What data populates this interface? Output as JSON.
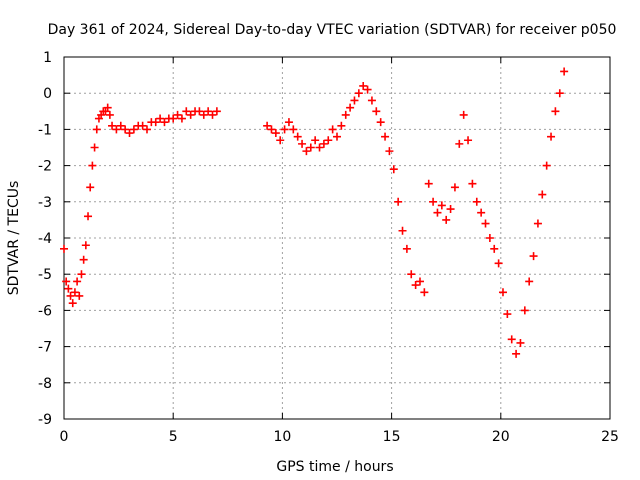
{
  "chart_data": {
    "type": "scatter",
    "title": "Day 361 of 2024, Sidereal Day-to-day VTEC variation (SDTVAR) for receiver p050",
    "xlabel": "GPS time / hours",
    "ylabel": "SDTVAR / TECUs",
    "xlim": [
      0,
      25
    ],
    "ylim": [
      -9,
      1
    ],
    "xticks": [
      0,
      5,
      10,
      15,
      20,
      25
    ],
    "yticks": [
      -9,
      -8,
      -7,
      -6,
      -5,
      -4,
      -3,
      -2,
      -1,
      0,
      1
    ],
    "grid": true,
    "marker": "plus",
    "series": [
      {
        "name": "SDTVAR",
        "color": "#ff0000",
        "x": [
          0.0,
          0.1,
          0.2,
          0.3,
          0.4,
          0.5,
          0.6,
          0.7,
          0.8,
          0.9,
          1.0,
          1.1,
          1.2,
          1.3,
          1.4,
          1.5,
          1.6,
          1.7,
          1.8,
          1.9,
          2.0,
          2.1,
          2.2,
          2.4,
          2.6,
          2.8,
          3.0,
          3.2,
          3.4,
          3.6,
          3.8,
          4.0,
          4.2,
          4.4,
          4.6,
          4.8,
          5.0,
          5.2,
          5.4,
          5.6,
          5.8,
          6.0,
          6.2,
          6.4,
          6.6,
          6.8,
          7.0,
          9.3,
          9.5,
          9.7,
          9.9,
          10.1,
          10.3,
          10.5,
          10.7,
          10.9,
          11.1,
          11.3,
          11.5,
          11.7,
          11.9,
          12.1,
          12.3,
          12.5,
          12.7,
          12.9,
          13.1,
          13.3,
          13.5,
          13.7,
          13.9,
          14.1,
          14.3,
          14.5,
          14.7,
          14.9,
          15.1,
          15.3,
          15.5,
          15.7,
          15.9,
          16.1,
          16.3,
          16.5,
          16.7,
          16.9,
          17.1,
          17.3,
          17.5,
          17.7,
          17.9,
          18.1,
          18.3,
          18.5,
          18.7,
          18.9,
          19.1,
          19.3,
          19.5,
          19.7,
          19.9,
          20.1,
          20.3,
          20.5,
          20.7,
          20.9,
          21.1,
          21.3,
          21.5,
          21.7,
          21.9,
          22.1,
          22.3,
          22.5,
          22.7,
          22.9
        ],
        "y": [
          -4.3,
          -5.2,
          -5.4,
          -5.6,
          -5.8,
          -5.5,
          -5.2,
          -5.6,
          -5.0,
          -4.6,
          -4.2,
          -3.4,
          -2.6,
          -2.0,
          -1.5,
          -1.0,
          -0.7,
          -0.6,
          -0.5,
          -0.5,
          -0.4,
          -0.6,
          -0.9,
          -1.0,
          -0.9,
          -1.0,
          -1.1,
          -1.0,
          -0.9,
          -0.9,
          -1.0,
          -0.8,
          -0.8,
          -0.7,
          -0.8,
          -0.7,
          -0.7,
          -0.6,
          -0.7,
          -0.5,
          -0.6,
          -0.5,
          -0.5,
          -0.6,
          -0.5,
          -0.6,
          -0.5,
          -0.9,
          -1.0,
          -1.1,
          -1.3,
          -1.0,
          -0.8,
          -1.0,
          -1.2,
          -1.4,
          -1.6,
          -1.5,
          -1.3,
          -1.5,
          -1.4,
          -1.3,
          -1.0,
          -1.2,
          -0.9,
          -0.6,
          -0.4,
          -0.2,
          0.0,
          0.2,
          0.1,
          -0.2,
          -0.5,
          -0.8,
          -1.2,
          -1.6,
          -2.1,
          -3.0,
          -3.8,
          -4.3,
          -5.0,
          -5.3,
          -5.2,
          -5.5,
          -2.5,
          -3.0,
          -3.3,
          -3.1,
          -3.5,
          -3.2,
          -2.6,
          -1.4,
          -0.6,
          -1.3,
          -2.5,
          -3.0,
          -3.3,
          -3.6,
          -4.0,
          -4.3,
          -4.7,
          -5.5,
          -6.1,
          -6.8,
          -7.2,
          -6.9,
          -6.0,
          -5.2,
          -4.5,
          -3.6,
          -2.8,
          -2.0,
          -1.2,
          -0.5,
          0.0,
          0.6
        ]
      }
    ]
  }
}
